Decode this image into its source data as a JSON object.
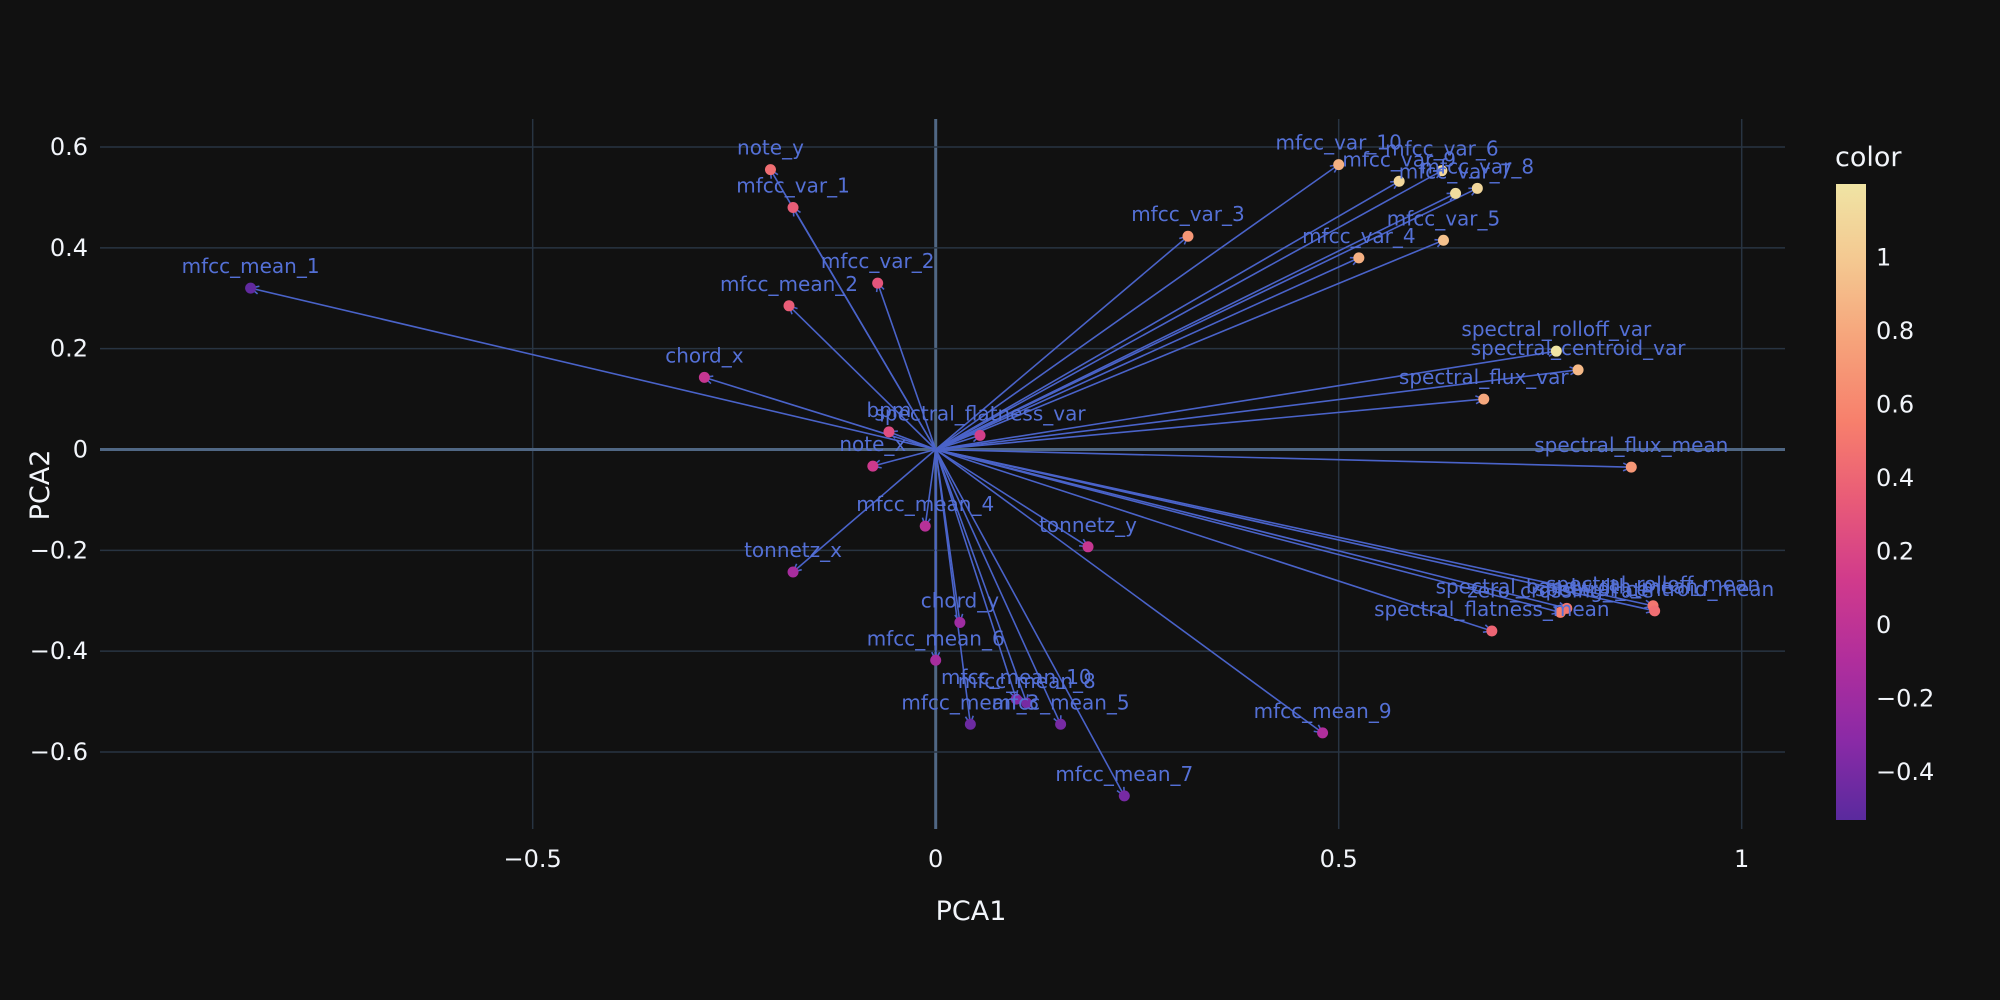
{
  "chart_data": {
    "type": "scatter",
    "xlabel": "PCA1",
    "ylabel": "PCA2",
    "xlim": [
      -0.9,
      1.05
    ],
    "ylim": [
      -0.74,
      0.65
    ],
    "x_ticks": [
      -0.5,
      0,
      0.5,
      1
    ],
    "x_tick_labels": [
      "−0.5",
      "0",
      "0.5",
      "1"
    ],
    "y_ticks": [
      -0.6,
      -0.4,
      -0.2,
      0,
      0.2,
      0.4,
      0.6
    ],
    "y_tick_labels": [
      "−0.6",
      "−0.4",
      "−0.2",
      "0",
      "0.2",
      "0.4",
      "0.6"
    ],
    "grid": true,
    "colorbar": {
      "title": "color",
      "range": [
        -0.53,
        1.2
      ],
      "ticks": [
        -0.4,
        -0.2,
        0,
        0.2,
        0.4,
        0.6,
        0.8,
        1
      ],
      "tick_labels": [
        "−0.4",
        "−0.2",
        "0",
        "0.2",
        "0.4",
        "0.6",
        "0.8",
        "1"
      ],
      "colorscale": [
        "#0d0887",
        "#46039f",
        "#7201a8",
        "#9c179e",
        "#bd3786",
        "#d8576b",
        "#ed7953",
        "#fb9f3a",
        "#fdca26",
        "#f0f921"
      ],
      "display_colorscale": [
        "#5a2a9e",
        "#8a2aa6",
        "#b02e9c",
        "#d03a8c",
        "#e85a78",
        "#f77f6c",
        "#f6a27a",
        "#f4c790",
        "#f0e4a4"
      ]
    },
    "loading_line_color": "#4a63c9",
    "label_color": "#5470d6",
    "points": [
      {
        "label": "mfcc_mean_1",
        "x": -0.85,
        "y": 0.32,
        "c": -0.5
      },
      {
        "label": "note_y",
        "x": -0.205,
        "y": 0.555,
        "c": 0.45
      },
      {
        "label": "mfcc_var_1",
        "x": -0.177,
        "y": 0.48,
        "c": 0.35
      },
      {
        "label": "mfcc_var_2",
        "x": -0.072,
        "y": 0.33,
        "c": 0.3
      },
      {
        "label": "mfcc_mean_2",
        "x": -0.182,
        "y": 0.285,
        "c": 0.35
      },
      {
        "label": "chord_x",
        "x": -0.287,
        "y": 0.143,
        "c": 0.05
      },
      {
        "label": "bpm",
        "x": -0.058,
        "y": 0.035,
        "c": 0.25
      },
      {
        "label": "spectral_flatness_var",
        "x": 0.055,
        "y": 0.028,
        "c": 0.15
      },
      {
        "label": "note_x",
        "x": -0.078,
        "y": -0.033,
        "c": 0.1
      },
      {
        "label": "mfcc_mean_4",
        "x": -0.013,
        "y": -0.152,
        "c": -0.05
      },
      {
        "label": "tonnetz_y",
        "x": 0.189,
        "y": -0.193,
        "c": 0.05
      },
      {
        "label": "tonnetz_x",
        "x": -0.177,
        "y": -0.243,
        "c": -0.15
      },
      {
        "label": "chord_y",
        "x": 0.03,
        "y": -0.343,
        "c": -0.2
      },
      {
        "label": "mfcc_mean_6",
        "x": 0.0,
        "y": -0.418,
        "c": -0.15
      },
      {
        "label": "mfcc_mean_10",
        "x": 0.1,
        "y": -0.495,
        "c": -0.35
      },
      {
        "label": "mfcc_mean_8",
        "x": 0.113,
        "y": -0.503,
        "c": -0.4
      },
      {
        "label": "mfcc_mean_3",
        "x": 0.043,
        "y": -0.545,
        "c": -0.45
      },
      {
        "label": "mfcc_mean_5",
        "x": 0.155,
        "y": -0.545,
        "c": -0.4
      },
      {
        "label": "mfcc_mean_9",
        "x": 0.48,
        "y": -0.562,
        "c": -0.1
      },
      {
        "label": "mfcc_mean_7",
        "x": 0.234,
        "y": -0.687,
        "c": -0.4
      },
      {
        "label": "mfcc_var_3",
        "x": 0.313,
        "y": 0.423,
        "c": 0.7
      },
      {
        "label": "mfcc_var_10",
        "x": 0.5,
        "y": 0.565,
        "c": 0.85
      },
      {
        "label": "mfcc_var_9",
        "x": 0.575,
        "y": 0.532,
        "c": 1.1
      },
      {
        "label": "mfcc_var_6",
        "x": 0.628,
        "y": 0.553,
        "c": 1.1
      },
      {
        "label": "mfcc_var_7",
        "x": 0.645,
        "y": 0.508,
        "c": 1.15
      },
      {
        "label": "mfcc_var_8",
        "x": 0.672,
        "y": 0.518,
        "c": 1.1
      },
      {
        "label": "mfcc_var_4",
        "x": 0.525,
        "y": 0.38,
        "c": 0.85
      },
      {
        "label": "mfcc_var_5",
        "x": 0.63,
        "y": 0.415,
        "c": 0.95
      },
      {
        "label": "spectral_rolloff_var",
        "x": 0.77,
        "y": 0.195,
        "c": 1.2
      },
      {
        "label": "spectral_centroid_var",
        "x": 0.797,
        "y": 0.158,
        "c": 0.9
      },
      {
        "label": "spectral_flux_var",
        "x": 0.68,
        "y": 0.1,
        "c": 0.8
      },
      {
        "label": "spectral_flux_mean",
        "x": 0.863,
        "y": -0.035,
        "c": 0.7
      },
      {
        "label": "spectral_rolloff_mean",
        "x": 0.89,
        "y": -0.31,
        "c": 0.5
      },
      {
        "label": "spectral_centroid_mean",
        "x": 0.892,
        "y": -0.32,
        "c": 0.45
      },
      {
        "label": "zero_crossing_rate",
        "x": 0.775,
        "y": -0.323,
        "c": 0.55
      },
      {
        "label": "spectral_bandwidth_mean",
        "x": 0.783,
        "y": -0.315,
        "c": 0.5
      },
      {
        "label": "spectral_flatness_mean",
        "x": 0.69,
        "y": -0.36,
        "c": 0.4
      }
    ]
  }
}
